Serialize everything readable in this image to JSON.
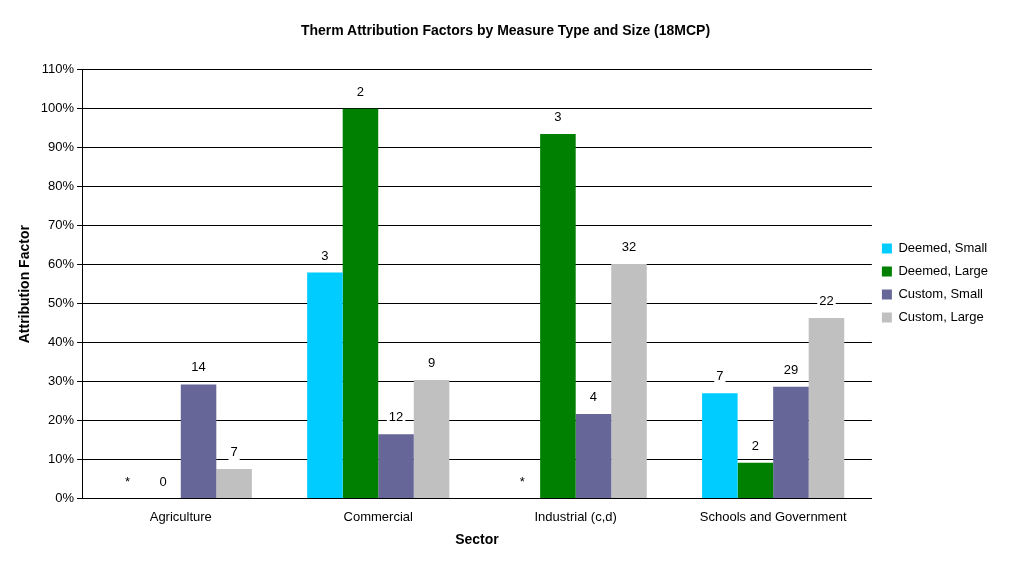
{
  "chart_data": {
    "type": "bar",
    "title": "Therm Attribution Factors by Measure Type and Size (18MCP)",
    "xlabel": "Sector",
    "ylabel": "Attribution Factor",
    "categories": [
      "Agriculture",
      "Commercial",
      "Industrial (c,d)",
      "Schools and Government"
    ],
    "series": [
      {
        "name": "Deemed, Small",
        "color": "#00ccff",
        "values": [
          null,
          58,
          null,
          27
        ]
      },
      {
        "name": "Deemed, Large",
        "color": "#008000",
        "values": [
          0,
          100,
          93.5,
          9.2
        ]
      },
      {
        "name": "Custom, Small",
        "color": "#666699",
        "values": [
          29.3,
          16.5,
          21.7,
          28.7
        ]
      },
      {
        "name": "Custom, Large",
        "color": "#c0c0c0",
        "values": [
          7.6,
          30.4,
          60.2,
          46.3
        ]
      }
    ],
    "annotations": [
      "*",
      "0",
      "14",
      "7",
      "3",
      "2",
      "12",
      "9",
      "*",
      "3",
      "4",
      "32",
      "7",
      "2",
      "29",
      "22"
    ],
    "ylim": [
      0,
      110
    ],
    "yticks": [
      {
        "value": 0,
        "label": "0%"
      },
      {
        "value": 10,
        "label": "10%"
      },
      {
        "value": 20,
        "label": "20%"
      },
      {
        "value": 30,
        "label": "30%"
      },
      {
        "value": 40,
        "label": "40%"
      },
      {
        "value": 50,
        "label": "50%"
      },
      {
        "value": 60,
        "label": "60%"
      },
      {
        "value": 70,
        "label": "70%"
      },
      {
        "value": 80,
        "label": "80%"
      },
      {
        "value": 90,
        "label": "90%"
      },
      {
        "value": 100,
        "label": "100%"
      },
      {
        "value": 110,
        "label": "110%"
      }
    ],
    "grid": "y",
    "legend": "right"
  }
}
